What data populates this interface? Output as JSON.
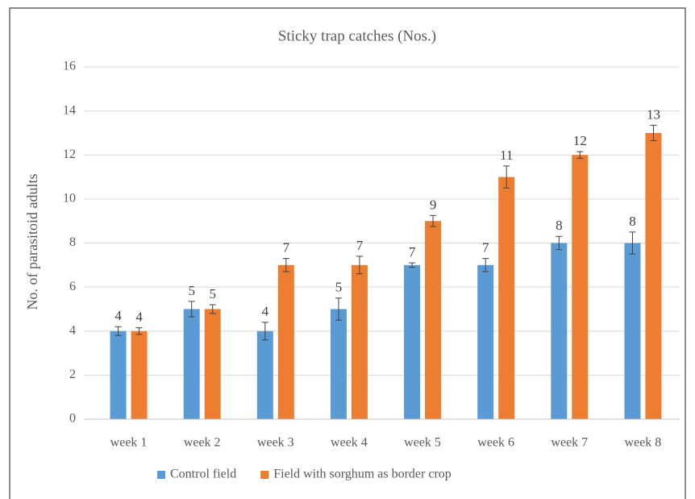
{
  "chart_data": {
    "type": "bar",
    "title": "Sticky trap catches (Nos.)",
    "y_label": "No. of parasitoid adults",
    "categories": [
      "week 1",
      "week 2",
      "week 3",
      "week 4",
      "week 5",
      "week 6",
      "week 7",
      "week 8"
    ],
    "series": [
      {
        "name": "Control field",
        "color": "#5b9bd5",
        "values": [
          4,
          5,
          4,
          5,
          7,
          7,
          8,
          8
        ],
        "errors": [
          0.2,
          0.35,
          0.4,
          0.5,
          0.1,
          0.3,
          0.3,
          0.5
        ]
      },
      {
        "name": "Field with sorghum as border crop",
        "color": "#ed7d31",
        "values": [
          4,
          5,
          7,
          7,
          9,
          11,
          12,
          13
        ],
        "errors": [
          0.15,
          0.2,
          0.3,
          0.4,
          0.25,
          0.5,
          0.15,
          0.35
        ]
      }
    ],
    "ylim": [
      0,
      16
    ],
    "yticks": [
      0,
      2,
      4,
      6,
      8,
      10,
      12,
      14,
      16
    ],
    "grid": true,
    "legend": "bottom"
  }
}
